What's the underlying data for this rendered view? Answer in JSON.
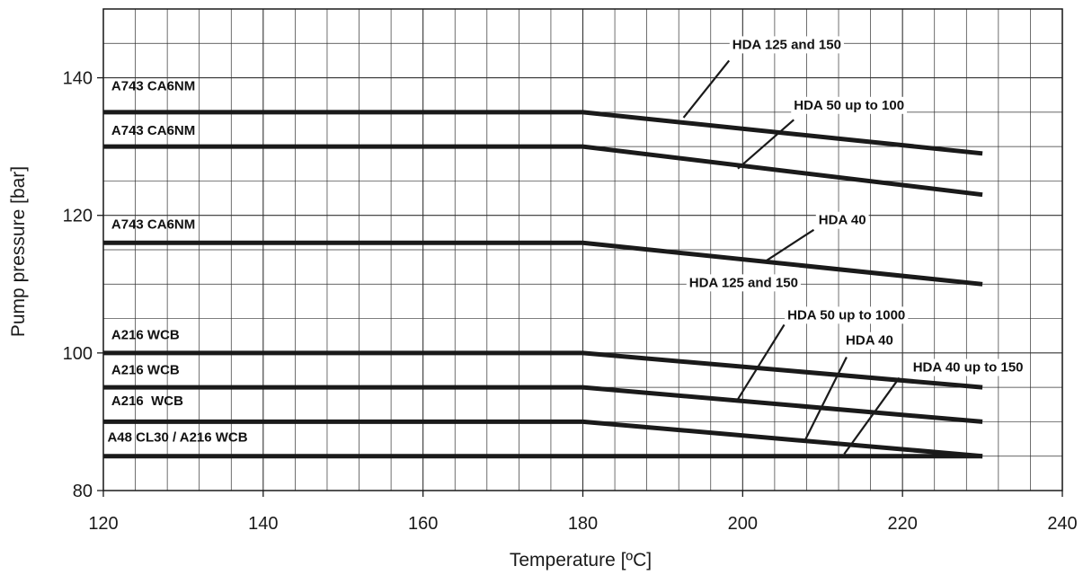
{
  "chart_data": {
    "type": "line",
    "xlabel": "Temperature [ºC]",
    "ylabel": "Pump pressure [bar]",
    "xlim": [
      120,
      240
    ],
    "ylim": [
      80,
      150
    ],
    "x_ticks": [
      120,
      140,
      160,
      180,
      200,
      220,
      240
    ],
    "y_ticks": [
      80,
      100,
      120,
      140
    ],
    "x_minor_step": 4,
    "y_minor_step": 5,
    "grid": true,
    "colors": {
      "line": "#1a1a1a",
      "grid": "#333333",
      "background": "#ffffff"
    },
    "series": [
      {
        "name": "A743 CA6NM",
        "x": [
          120,
          180,
          230
        ],
        "y": [
          135,
          135,
          129
        ]
      },
      {
        "name": "A743 CA6NM",
        "x": [
          120,
          180,
          230
        ],
        "y": [
          130,
          130,
          123
        ]
      },
      {
        "name": "A743 CA6NM",
        "x": [
          120,
          180,
          230
        ],
        "y": [
          116,
          116,
          110
        ]
      },
      {
        "name": "A216 WCB",
        "x": [
          120,
          180,
          230
        ],
        "y": [
          100,
          100,
          95
        ]
      },
      {
        "name": "A216 WCB",
        "x": [
          120,
          180,
          230
        ],
        "y": [
          95,
          95,
          90
        ]
      },
      {
        "name": "A216  WCB",
        "x": [
          120,
          180,
          230
        ],
        "y": [
          90,
          90,
          85
        ]
      },
      {
        "name": "A48 CL30 / A216 WCB",
        "x": [
          120,
          180,
          230
        ],
        "y": [
          85,
          85,
          85
        ]
      }
    ],
    "left_labels": [
      {
        "text": "A743 CA6NM",
        "x": 121,
        "y": 138.2
      },
      {
        "text": "A743 CA6NM",
        "x": 121,
        "y": 131.7
      },
      {
        "text": "A743 CA6NM",
        "x": 121,
        "y": 118.1
      },
      {
        "text": "A216 WCB",
        "x": 121,
        "y": 102
      },
      {
        "text": "A216 WCB",
        "x": 121,
        "y": 96.9
      },
      {
        "text": "A216  WCB",
        "x": 121,
        "y": 92.4
      },
      {
        "text": "A48 CL30 / A216 WCB",
        "x": 120.5,
        "y": 87.1
      }
    ],
    "annotations": [
      {
        "text": "HDA 125 and 150",
        "label_x": 198.7,
        "label_y": 144.2,
        "pointer": [
          [
            192.6,
            134.2
          ],
          [
            198.3,
            142.5
          ]
        ]
      },
      {
        "text": "HDA 50 up to 100",
        "label_x": 206.4,
        "label_y": 135.4,
        "pointer": [
          [
            199.4,
            126.8
          ],
          [
            206.4,
            133.9
          ]
        ]
      },
      {
        "text": "HDA 40",
        "label_x": 209.5,
        "label_y": 118.7,
        "pointer": [
          [
            202.8,
            113.3
          ],
          [
            208.9,
            117.9
          ]
        ]
      },
      {
        "text": "HDA 125 and 150",
        "label_x": 193.3,
        "label_y": 109.6,
        "pointer": null
      },
      {
        "text": "HDA 50 up to 1000",
        "label_x": 205.6,
        "label_y": 104.9,
        "pointer": [
          [
            199.2,
            92.9
          ],
          [
            205.2,
            104.1
          ]
        ]
      },
      {
        "text": "HDA 40",
        "label_x": 212.9,
        "label_y": 101.2,
        "pointer": [
          [
            207.8,
            87.3
          ],
          [
            213.0,
            99.4
          ]
        ]
      },
      {
        "text": "HDA 40 up to 150",
        "label_x": 221.3,
        "label_y": 97.3,
        "pointer": [
          [
            212.7,
            85.3
          ],
          [
            219.6,
            96.4
          ]
        ]
      }
    ]
  }
}
